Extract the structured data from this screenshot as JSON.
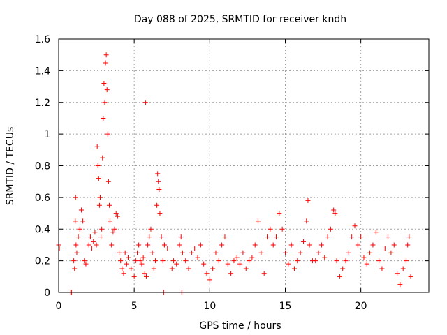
{
  "chart_data": {
    "type": "scatter",
    "title": "Day 088 of 2025, SRMTID for receiver kndh",
    "xlabel": "GPS time / hours",
    "ylabel": "SRMTID / TECUs",
    "xlim": [
      0,
      24.5
    ],
    "ylim": [
      0,
      1.6
    ],
    "xticks": [
      0,
      5,
      10,
      15,
      20
    ],
    "xtick_labels": [
      "0",
      "5",
      "10",
      "15",
      "20"
    ],
    "yticks": [
      0,
      0.2,
      0.4,
      0.6,
      0.8,
      1.0,
      1.2,
      1.4,
      1.6
    ],
    "ytick_labels": [
      "0",
      "0.2",
      "0.4",
      "0.6",
      "0.8",
      "1",
      "1.2",
      "1.4",
      "1.6"
    ],
    "grid": true,
    "marker": "plus",
    "marker_color": "#ff0000",
    "series": [
      {
        "name": "SRMTID",
        "points": [
          [
            0.0,
            0.3
          ],
          [
            0.05,
            0.28
          ],
          [
            0.8,
            0.0
          ],
          [
            0.85,
            0.0
          ],
          [
            1.0,
            0.2
          ],
          [
            1.05,
            0.15
          ],
          [
            1.1,
            0.45
          ],
          [
            1.12,
            0.6
          ],
          [
            1.15,
            0.3
          ],
          [
            1.2,
            0.25
          ],
          [
            1.3,
            0.35
          ],
          [
            1.4,
            0.4
          ],
          [
            1.5,
            0.52
          ],
          [
            1.6,
            0.45
          ],
          [
            1.7,
            0.2
          ],
          [
            1.8,
            0.18
          ],
          [
            2.0,
            0.3
          ],
          [
            2.1,
            0.35
          ],
          [
            2.2,
            0.28
          ],
          [
            2.3,
            0.32
          ],
          [
            2.4,
            0.38
          ],
          [
            2.5,
            0.3
          ],
          [
            2.55,
            0.92
          ],
          [
            2.6,
            0.8
          ],
          [
            2.65,
            0.72
          ],
          [
            2.7,
            0.55
          ],
          [
            2.75,
            0.6
          ],
          [
            2.8,
            0.35
          ],
          [
            2.85,
            0.4
          ],
          [
            2.9,
            0.85
          ],
          [
            2.95,
            1.1
          ],
          [
            3.0,
            1.32
          ],
          [
            3.05,
            1.2
          ],
          [
            3.1,
            1.45
          ],
          [
            3.15,
            1.5
          ],
          [
            3.2,
            1.28
          ],
          [
            3.25,
            1.0
          ],
          [
            3.3,
            0.7
          ],
          [
            3.35,
            0.55
          ],
          [
            3.4,
            0.45
          ],
          [
            3.5,
            0.3
          ],
          [
            3.6,
            0.38
          ],
          [
            3.7,
            0.4
          ],
          [
            3.8,
            0.5
          ],
          [
            3.9,
            0.48
          ],
          [
            4.0,
            0.25
          ],
          [
            4.1,
            0.2
          ],
          [
            4.2,
            0.15
          ],
          [
            4.3,
            0.12
          ],
          [
            4.4,
            0.25
          ],
          [
            4.5,
            0.18
          ],
          [
            4.6,
            0.22
          ],
          [
            4.8,
            0.15
          ],
          [
            5.0,
            0.1
          ],
          [
            5.1,
            0.2
          ],
          [
            5.2,
            0.25
          ],
          [
            5.3,
            0.3
          ],
          [
            5.4,
            0.2
          ],
          [
            5.5,
            0.18
          ],
          [
            5.6,
            0.22
          ],
          [
            5.7,
            0.12
          ],
          [
            5.75,
            1.2
          ],
          [
            5.8,
            0.1
          ],
          [
            5.9,
            0.3
          ],
          [
            6.0,
            0.35
          ],
          [
            6.1,
            0.4
          ],
          [
            6.2,
            0.25
          ],
          [
            6.3,
            0.15
          ],
          [
            6.4,
            0.2
          ],
          [
            6.5,
            0.55
          ],
          [
            6.55,
            0.75
          ],
          [
            6.6,
            0.7
          ],
          [
            6.65,
            0.65
          ],
          [
            6.7,
            0.5
          ],
          [
            6.8,
            0.35
          ],
          [
            6.9,
            0.2
          ],
          [
            6.95,
            0.0
          ],
          [
            7.0,
            0.3
          ],
          [
            7.2,
            0.28
          ],
          [
            7.5,
            0.15
          ],
          [
            7.6,
            0.2
          ],
          [
            7.8,
            0.18
          ],
          [
            8.0,
            0.3
          ],
          [
            8.1,
            0.35
          ],
          [
            8.15,
            0.0
          ],
          [
            8.2,
            0.25
          ],
          [
            8.4,
            0.2
          ],
          [
            8.6,
            0.15
          ],
          [
            8.8,
            0.25
          ],
          [
            9.0,
            0.28
          ],
          [
            9.2,
            0.22
          ],
          [
            9.4,
            0.3
          ],
          [
            9.6,
            0.18
          ],
          [
            9.8,
            0.12
          ],
          [
            10.0,
            0.08
          ],
          [
            10.2,
            0.15
          ],
          [
            10.4,
            0.25
          ],
          [
            10.6,
            0.2
          ],
          [
            10.8,
            0.3
          ],
          [
            11.0,
            0.35
          ],
          [
            11.2,
            0.18
          ],
          [
            11.4,
            0.12
          ],
          [
            11.6,
            0.2
          ],
          [
            11.8,
            0.22
          ],
          [
            12.0,
            0.18
          ],
          [
            12.2,
            0.25
          ],
          [
            12.4,
            0.15
          ],
          [
            12.6,
            0.2
          ],
          [
            12.8,
            0.22
          ],
          [
            13.0,
            0.3
          ],
          [
            13.2,
            0.45
          ],
          [
            13.4,
            0.25
          ],
          [
            13.6,
            0.12
          ],
          [
            13.8,
            0.35
          ],
          [
            14.0,
            0.4
          ],
          [
            14.2,
            0.3
          ],
          [
            14.4,
            0.35
          ],
          [
            14.6,
            0.5
          ],
          [
            14.8,
            0.4
          ],
          [
            15.0,
            0.25
          ],
          [
            15.2,
            0.18
          ],
          [
            15.4,
            0.3
          ],
          [
            15.6,
            0.15
          ],
          [
            15.8,
            0.2
          ],
          [
            16.0,
            0.25
          ],
          [
            16.2,
            0.32
          ],
          [
            16.4,
            0.45
          ],
          [
            16.5,
            0.58
          ],
          [
            16.6,
            0.3
          ],
          [
            16.8,
            0.2
          ],
          [
            17.0,
            0.2
          ],
          [
            17.2,
            0.25
          ],
          [
            17.4,
            0.3
          ],
          [
            17.6,
            0.22
          ],
          [
            17.8,
            0.35
          ],
          [
            18.0,
            0.4
          ],
          [
            18.2,
            0.52
          ],
          [
            18.3,
            0.5
          ],
          [
            18.4,
            0.2
          ],
          [
            18.6,
            0.1
          ],
          [
            18.8,
            0.15
          ],
          [
            19.0,
            0.2
          ],
          [
            19.2,
            0.25
          ],
          [
            19.4,
            0.35
          ],
          [
            19.6,
            0.42
          ],
          [
            19.8,
            0.3
          ],
          [
            20.0,
            0.35
          ],
          [
            20.2,
            0.22
          ],
          [
            20.4,
            0.18
          ],
          [
            20.6,
            0.25
          ],
          [
            20.8,
            0.3
          ],
          [
            21.0,
            0.38
          ],
          [
            21.2,
            0.2
          ],
          [
            21.4,
            0.15
          ],
          [
            21.6,
            0.28
          ],
          [
            21.8,
            0.35
          ],
          [
            22.0,
            0.25
          ],
          [
            22.2,
            0.3
          ],
          [
            22.4,
            0.12
          ],
          [
            22.6,
            0.05
          ],
          [
            22.8,
            0.15
          ],
          [
            23.0,
            0.2
          ],
          [
            23.1,
            0.3
          ],
          [
            23.2,
            0.35
          ],
          [
            23.3,
            0.1
          ]
        ]
      }
    ]
  }
}
